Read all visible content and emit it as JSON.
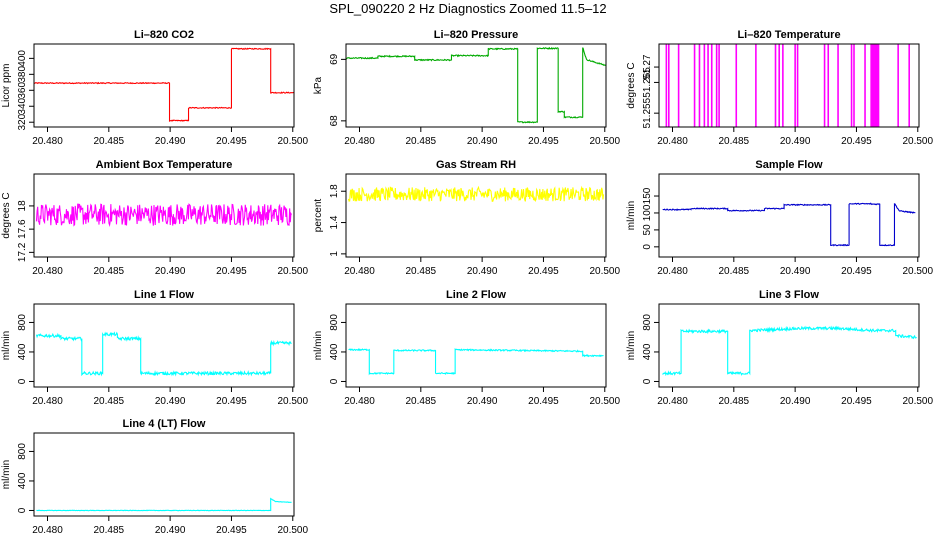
{
  "page": {
    "title": "SPL_090220  2 Hz Diagnostics Zoomed 11.5–12"
  },
  "chart_data": [
    {
      "type": "line",
      "title": "Li–820 CO2",
      "ylabel": "Licor ppm",
      "xlabel": "",
      "color": "#ff0000",
      "xlim": [
        20.4789,
        20.5001
      ],
      "ylim": [
        314,
        418
      ],
      "x_ticks": [
        "20.480",
        "20.485",
        "20.490",
        "20.495",
        "20.500"
      ],
      "y_ticks": [
        320,
        340,
        360,
        380,
        400
      ],
      "series": [
        {
          "name": "",
          "noise": 0.6,
          "x": [
            20.4789,
            20.48995,
            20.48995,
            20.4915,
            20.4915,
            20.495,
            20.495,
            20.4982,
            20.4982,
            20.5001
          ],
          "values": [
            369,
            369,
            322,
            322,
            338,
            338,
            412,
            412,
            357,
            357
          ]
        }
      ]
    },
    {
      "type": "line",
      "title": "Li–820 Pressure",
      "ylabel": "kPa",
      "xlabel": "",
      "color": "#00aa00",
      "xlim": [
        20.4789,
        20.5001
      ],
      "ylim": [
        67.9,
        69.25
      ],
      "x_ticks": [
        "20.480",
        "20.485",
        "20.490",
        "20.495",
        "20.500"
      ],
      "y_ticks": [
        68.0,
        69.0
      ],
      "series": [
        {
          "name": "",
          "noise": 0.01,
          "x": [
            20.4789,
            20.4815,
            20.4815,
            20.4845,
            20.4845,
            20.4875,
            20.4875,
            20.4905,
            20.4905,
            20.4929,
            20.4929,
            20.4945,
            20.4945,
            20.4962,
            20.4962,
            20.4967,
            20.4967,
            20.4982,
            20.4982,
            20.4985,
            20.4989,
            20.4996,
            20.5001
          ],
          "values": [
            69.02,
            69.02,
            69.05,
            69.05,
            68.99,
            68.99,
            69.06,
            69.06,
            69.17,
            69.17,
            67.98,
            67.98,
            69.18,
            69.18,
            68.15,
            68.15,
            68.06,
            68.06,
            69.2,
            69.0,
            68.97,
            68.93,
            68.9
          ]
        }
      ]
    },
    {
      "type": "line",
      "title": "Li–820 Temperature",
      "ylabel": "degrees C",
      "xlabel": "",
      "color": "#ff00ff",
      "xlim": [
        20.4789,
        20.5001
      ],
      "ylim": [
        51.2505,
        51.2775
      ],
      "x_ticks": [
        "20.480",
        "20.485",
        "20.490",
        "20.495",
        "20.500"
      ],
      "y_ticks": [
        51.255,
        51.265,
        51.27
      ],
      "series": [
        {
          "name": "",
          "base": 51.25,
          "spike": 51.2775,
          "spikes": [
            20.4795,
            20.4797,
            20.4805,
            20.4818,
            20.4822,
            20.4826,
            20.4829,
            20.4832,
            20.4836,
            20.4838,
            20.4852,
            20.4868,
            20.4884,
            20.4887,
            20.489,
            20.49,
            20.4902,
            20.4924,
            20.4927,
            20.4935,
            20.4946,
            20.4948,
            20.4957,
            20.4962,
            20.4963,
            20.4964,
            20.4965,
            20.4966,
            20.4967,
            20.4968,
            20.4984,
            20.4993
          ]
        }
      ]
    },
    {
      "type": "line",
      "title": "Ambient Box Temperature",
      "ylabel": "degrees C",
      "xlabel": "",
      "color": "#ff00ff",
      "xlim": [
        20.4789,
        20.5001
      ],
      "ylim": [
        17.12,
        18.55
      ],
      "x_ticks": [
        "20.480",
        "20.485",
        "20.490",
        "20.495",
        "20.500"
      ],
      "y_ticks": [
        17.2,
        17.6,
        18.0
      ],
      "series": [
        {
          "name": "",
          "noise": 0.19,
          "x": [
            20.4791,
            20.4999
          ],
          "values": [
            17.85,
            17.85
          ]
        }
      ]
    },
    {
      "type": "line",
      "title": "Gas Stream RH",
      "ylabel": "percent",
      "xlabel": "",
      "color": "#ffff00",
      "xlim": [
        20.4789,
        20.5001
      ],
      "ylim": [
        0.96,
        2.02
      ],
      "x_ticks": [
        "20.480",
        "20.485",
        "20.490",
        "20.495",
        "20.500"
      ],
      "y_ticks": [
        1.0,
        1.4,
        1.8
      ],
      "series": [
        {
          "name": "",
          "noise": 0.09,
          "x": [
            20.4791,
            20.4999
          ],
          "values": [
            1.76,
            1.76
          ]
        }
      ]
    },
    {
      "type": "line",
      "title": "Sample Flow",
      "ylabel": "ml/min",
      "xlabel": "",
      "color": "#0000cc",
      "xlim": [
        20.4789,
        20.5001
      ],
      "ylim": [
        -30,
        215
      ],
      "x_ticks": [
        "20.480",
        "20.485",
        "20.490",
        "20.495",
        "20.500"
      ],
      "y_ticks": [
        0,
        50,
        100,
        150
      ],
      "series": [
        {
          "name": "",
          "noise": 1.5,
          "x": [
            20.4792,
            20.4815,
            20.4815,
            20.4845,
            20.4845,
            20.4875,
            20.4875,
            20.4891,
            20.4891,
            20.4929,
            20.4929,
            20.4944,
            20.4944,
            20.4962,
            20.4962,
            20.4969,
            20.4969,
            20.4981,
            20.4981,
            20.4985,
            20.4992,
            20.4998
          ],
          "values": [
            110,
            110,
            113,
            113,
            107,
            107,
            113,
            113,
            124,
            124,
            5,
            5,
            127,
            127,
            126,
            126,
            5,
            5,
            128,
            106,
            103,
            100
          ]
        }
      ]
    },
    {
      "type": "line",
      "title": "Line 1 Flow",
      "ylabel": "ml/min",
      "xlabel": "",
      "color": "#00ffff",
      "xlim": [
        20.4789,
        20.5001
      ],
      "ylim": [
        -75,
        1050
      ],
      "x_ticks": [
        "20.480",
        "20.485",
        "20.490",
        "20.495",
        "20.500"
      ],
      "y_ticks": [
        0,
        400,
        800
      ],
      "series": [
        {
          "name": "",
          "noise": 20,
          "x": [
            20.4791,
            20.4811,
            20.4811,
            20.4828,
            20.4828,
            20.4845,
            20.4845,
            20.4857,
            20.4857,
            20.4876,
            20.4876,
            20.4982,
            20.4982,
            20.4999
          ],
          "values": [
            620,
            620,
            580,
            580,
            110,
            110,
            640,
            640,
            580,
            580,
            110,
            110,
            520,
            520
          ]
        }
      ]
    },
    {
      "type": "line",
      "title": "Line 2 Flow",
      "ylabel": "ml/min",
      "xlabel": "",
      "color": "#00ffff",
      "xlim": [
        20.4789,
        20.5001
      ],
      "ylim": [
        -75,
        1050
      ],
      "x_ticks": [
        "20.480",
        "20.485",
        "20.490",
        "20.495",
        "20.500"
      ],
      "y_ticks": [
        0,
        400,
        800
      ],
      "series": [
        {
          "name": "",
          "noise": 9,
          "x": [
            20.4791,
            20.4808,
            20.4808,
            20.4828,
            20.4828,
            20.4862,
            20.4862,
            20.4878,
            20.4878,
            20.4982,
            20.4982,
            20.4999
          ],
          "values": [
            430,
            430,
            110,
            110,
            420,
            420,
            110,
            110,
            430,
            410,
            350,
            350
          ]
        }
      ]
    },
    {
      "type": "line",
      "title": "Line 3 Flow",
      "ylabel": "ml/min",
      "xlabel": "",
      "color": "#00ffff",
      "xlim": [
        20.4789,
        20.5001
      ],
      "ylim": [
        -75,
        1050
      ],
      "x_ticks": [
        "20.480",
        "20.485",
        "20.490",
        "20.495",
        "20.500"
      ],
      "y_ticks": [
        0,
        400,
        800
      ],
      "series": [
        {
          "name": "",
          "noise": 18,
          "x": [
            20.4792,
            20.4807,
            20.4807,
            20.4845,
            20.4845,
            20.4863,
            20.4863,
            20.4905,
            20.4935,
            20.4965,
            20.4982,
            20.4982,
            20.4999
          ],
          "values": [
            110,
            110,
            680,
            680,
            110,
            110,
            690,
            720,
            720,
            690,
            690,
            620,
            600
          ]
        }
      ]
    },
    {
      "type": "line",
      "title": "Line 4 (LT) Flow",
      "ylabel": "ml/min",
      "xlabel": "",
      "color": "#00ffff",
      "xlim": [
        20.4789,
        20.5001
      ],
      "ylim": [
        -75,
        1050
      ],
      "x_ticks": [
        "20.480",
        "20.485",
        "20.490",
        "20.495",
        "20.500"
      ],
      "y_ticks": [
        0,
        400,
        800
      ],
      "series": [
        {
          "name": "",
          "noise": 3,
          "x": [
            20.4791,
            20.4982,
            20.4982,
            20.4986,
            20.4999
          ],
          "values": [
            0,
            0,
            160,
            120,
            110
          ]
        }
      ]
    }
  ]
}
